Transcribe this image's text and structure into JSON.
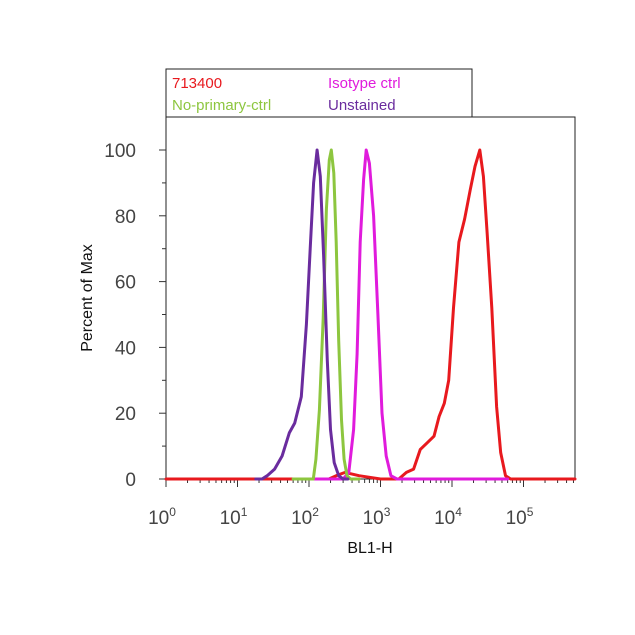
{
  "chart_data": {
    "type": "line",
    "xlabel": "BL1-H",
    "ylabel": "Percent of Max",
    "x_scale": "log",
    "xlim": [
      1,
      600000
    ],
    "ylim": [
      0,
      110
    ],
    "grid": false,
    "legend_position": "top",
    "x_ticks": [
      {
        "base": "10",
        "exp": "0",
        "value": 1
      },
      {
        "base": "10",
        "exp": "1",
        "value": 10
      },
      {
        "base": "10",
        "exp": "2",
        "value": 100
      },
      {
        "base": "10",
        "exp": "3",
        "value": 1000
      },
      {
        "base": "10",
        "exp": "4",
        "value": 10000
      },
      {
        "base": "10",
        "exp": "5",
        "value": 100000
      }
    ],
    "y_ticks": [
      {
        "label": "0",
        "value": 0
      },
      {
        "label": "20",
        "value": 20
      },
      {
        "label": "40",
        "value": 40
      },
      {
        "label": "60",
        "value": 60
      },
      {
        "label": "80",
        "value": 80
      },
      {
        "label": "100",
        "value": 100
      }
    ],
    "series": [
      {
        "name": "713400",
        "color": "#e8191e",
        "points": [
          [
            1,
            0
          ],
          [
            20,
            0
          ],
          [
            80,
            0
          ],
          [
            190,
            0
          ],
          [
            240,
            1
          ],
          [
            320,
            2
          ],
          [
            500,
            1
          ],
          [
            1000,
            0
          ],
          [
            1800,
            0
          ],
          [
            2300,
            2
          ],
          [
            2900,
            3
          ],
          [
            3600,
            9
          ],
          [
            4500,
            11
          ],
          [
            5600,
            13
          ],
          [
            6600,
            19
          ],
          [
            7800,
            23
          ],
          [
            9000,
            30
          ],
          [
            10500,
            52
          ],
          [
            12500,
            72
          ],
          [
            15000,
            79
          ],
          [
            18000,
            88
          ],
          [
            21000,
            95
          ],
          [
            24500,
            100
          ],
          [
            27500,
            92
          ],
          [
            31000,
            75
          ],
          [
            36000,
            52
          ],
          [
            42000,
            22
          ],
          [
            48000,
            8
          ],
          [
            56000,
            1
          ],
          [
            66000,
            0
          ],
          [
            600000,
            0
          ]
        ]
      },
      {
        "name": "Isotype ctrl",
        "color": "#e01bdc",
        "points": [
          [
            100,
            0
          ],
          [
            300,
            0
          ],
          [
            360,
            2
          ],
          [
            420,
            15
          ],
          [
            470,
            38
          ],
          [
            520,
            72
          ],
          [
            580,
            91
          ],
          [
            630,
            100
          ],
          [
            700,
            96
          ],
          [
            800,
            80
          ],
          [
            920,
            50
          ],
          [
            1050,
            20
          ],
          [
            1200,
            7
          ],
          [
            1400,
            1
          ],
          [
            1700,
            0
          ],
          [
            2000,
            0
          ],
          [
            60000,
            0
          ]
        ]
      },
      {
        "name": "No-primary-ctrl",
        "color": "#8dc63f",
        "points": [
          [
            60,
            0
          ],
          [
            115,
            0
          ],
          [
            125,
            6
          ],
          [
            140,
            21
          ],
          [
            158,
            49
          ],
          [
            175,
            82
          ],
          [
            192,
            97
          ],
          [
            205,
            100
          ],
          [
            222,
            93
          ],
          [
            240,
            72
          ],
          [
            260,
            42
          ],
          [
            285,
            18
          ],
          [
            310,
            6
          ],
          [
            340,
            1
          ],
          [
            380,
            0
          ],
          [
            500,
            0
          ]
        ]
      },
      {
        "name": "Unstained",
        "color": "#6a2c9e",
        "points": [
          [
            18,
            0
          ],
          [
            22,
            0
          ],
          [
            26,
            1
          ],
          [
            33,
            3
          ],
          [
            42,
            7
          ],
          [
            53,
            14
          ],
          [
            63,
            17
          ],
          [
            78,
            25
          ],
          [
            92,
            47
          ],
          [
            104,
            70
          ],
          [
            116,
            90
          ],
          [
            130,
            100
          ],
          [
            144,
            92
          ],
          [
            160,
            68
          ],
          [
            180,
            36
          ],
          [
            200,
            15
          ],
          [
            225,
            5
          ],
          [
            260,
            1
          ],
          [
            300,
            0
          ],
          [
            350,
            0
          ]
        ]
      }
    ]
  }
}
